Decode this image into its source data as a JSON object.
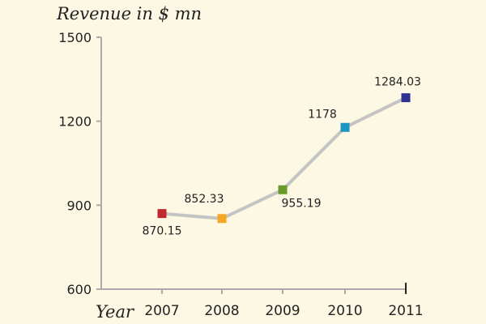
{
  "chart_data": {
    "type": "line",
    "title": "",
    "ylabel": "Revenue in $ mn",
    "xlabel": "Year",
    "categories": [
      "2007",
      "2008",
      "2009",
      "2010",
      "2011"
    ],
    "values": [
      870.15,
      852.33,
      955.19,
      1178,
      1284.03
    ],
    "data_labels": [
      "870.15",
      "852.33",
      "955.19",
      "1178",
      "1284.03"
    ],
    "ylim": [
      600,
      1500
    ],
    "yticks": [
      "1500",
      "1200",
      "900",
      "600"
    ],
    "grid": false,
    "marker": "square",
    "marker_colors": [
      "#c0282d",
      "#f5a623",
      "#6a9a2c",
      "#1b95c4",
      "#2e3192"
    ],
    "line_color": "#c4c4c4",
    "axis_color": "#aaaaaa",
    "background": "#fdf8e4"
  }
}
